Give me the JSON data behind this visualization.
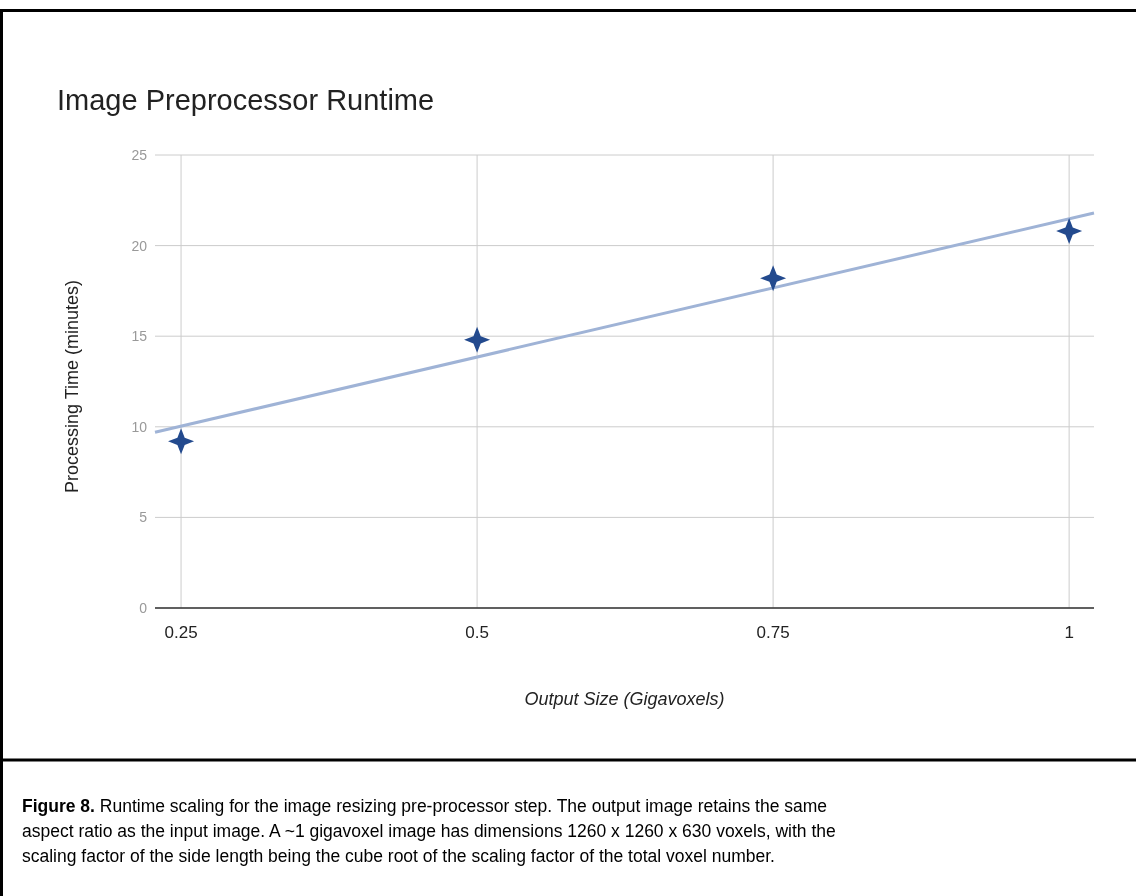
{
  "chart_data": {
    "type": "scatter",
    "title": "Image Preprocessor Runtime",
    "xlabel": "Output Size (Gigavoxels)",
    "ylabel": "Processing Time (minutes)",
    "xlim": [
      0.228,
      1.021
    ],
    "xticks": [
      0.25,
      0.5,
      0.75,
      1
    ],
    "ylim": [
      0,
      25
    ],
    "yticks": [
      0,
      5,
      10,
      15,
      20,
      25
    ],
    "grid": true,
    "series": [
      {
        "marker": "star",
        "color": "#234a8e",
        "x": [
          0.25,
          0.5,
          0.75,
          1
        ],
        "values": [
          9.2,
          14.8,
          18.2,
          20.8
        ]
      },
      {
        "type": "line",
        "color": "#9fb3d6",
        "x": [
          0.228,
          1.021
        ],
        "values": [
          9.7,
          21.8
        ]
      }
    ],
    "annotations": [
      "Figure 8. Runtime scaling for the image resizing pre-processor step. The output image retains the same aspect ratio as the input image. A ~1 gigavoxel image has dimensions 1260 x 1260 x 630 voxels, with the scaling factor of the side length being the cube root of the scaling factor of the total voxel number."
    ]
  }
}
